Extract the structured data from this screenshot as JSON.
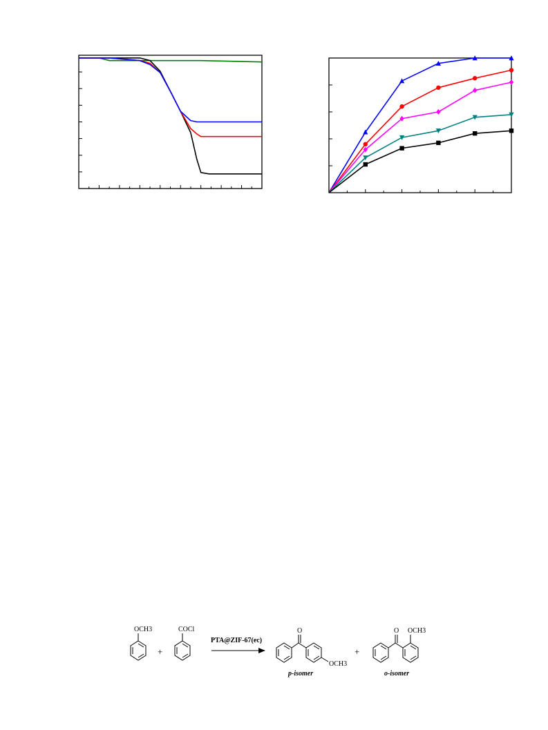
{
  "chart_data": [
    {
      "type": "line",
      "title": "",
      "xlabel": "",
      "ylabel": "",
      "grid": false,
      "legend": "none",
      "xlim": [
        0,
        900
      ],
      "ylim": [
        0,
        100
      ],
      "series": [
        {
          "color": "#008000",
          "x": [
            0,
            100,
            150,
            200,
            300,
            400,
            600,
            900
          ],
          "y": [
            98,
            98,
            96,
            96,
            96,
            96,
            96,
            95
          ]
        },
        {
          "color": "#000000",
          "x": [
            0,
            150,
            300,
            350,
            400,
            450,
            500,
            550,
            580,
            600,
            640,
            700,
            900
          ],
          "y": [
            98,
            98,
            98,
            96,
            88,
            73,
            58,
            42,
            22,
            12,
            11,
            11,
            11
          ]
        },
        {
          "color": "#ff0000",
          "x": [
            0,
            150,
            300,
            350,
            400,
            450,
            500,
            550,
            580,
            600,
            640,
            700,
            900
          ],
          "y": [
            98,
            98,
            96,
            94,
            87,
            73,
            58,
            45,
            41,
            39,
            39,
            39,
            39
          ]
        },
        {
          "color": "#0000ff",
          "x": [
            0,
            150,
            300,
            350,
            400,
            450,
            500,
            550,
            580,
            600,
            640,
            700,
            900
          ],
          "y": [
            98,
            98,
            96,
            93,
            87,
            73,
            58,
            51,
            50,
            50,
            50,
            50,
            50
          ]
        }
      ]
    },
    {
      "type": "line",
      "title": "",
      "xlabel": "",
      "ylabel": "",
      "grid": false,
      "legend": "none",
      "xlim": [
        0,
        5
      ],
      "ylim": [
        0,
        100
      ],
      "x": [
        0,
        1,
        2,
        3,
        4,
        5
      ],
      "series": [
        {
          "color": "#0000ff",
          "marker": "triangle-up",
          "values": [
            0,
            45,
            83,
            96,
            100,
            101
          ]
        },
        {
          "color": "#ff0000",
          "marker": "circle",
          "values": [
            0,
            36,
            64,
            78,
            85,
            91
          ]
        },
        {
          "color": "#ff00ff",
          "marker": "diamond",
          "values": [
            0,
            32,
            55,
            60,
            76,
            82
          ]
        },
        {
          "color": "#008080",
          "marker": "triangle-down",
          "values": [
            0,
            26,
            41,
            46,
            56,
            58
          ]
        },
        {
          "color": "#000000",
          "marker": "square",
          "values": [
            0,
            21,
            33,
            37,
            44,
            46
          ]
        }
      ]
    }
  ],
  "scheme": {
    "reactant1_label": "OCH3",
    "plus1": "+",
    "reactant2_label": "COCl",
    "catalyst": "PTA@ZIF-67(ec)",
    "product1_o": "O",
    "product1_sub": "OCH3",
    "product1_name": "p-isomer",
    "plus2": "+",
    "product2_o": "O",
    "product2_sub": "OCH3",
    "product2_name": "o-isomer"
  }
}
